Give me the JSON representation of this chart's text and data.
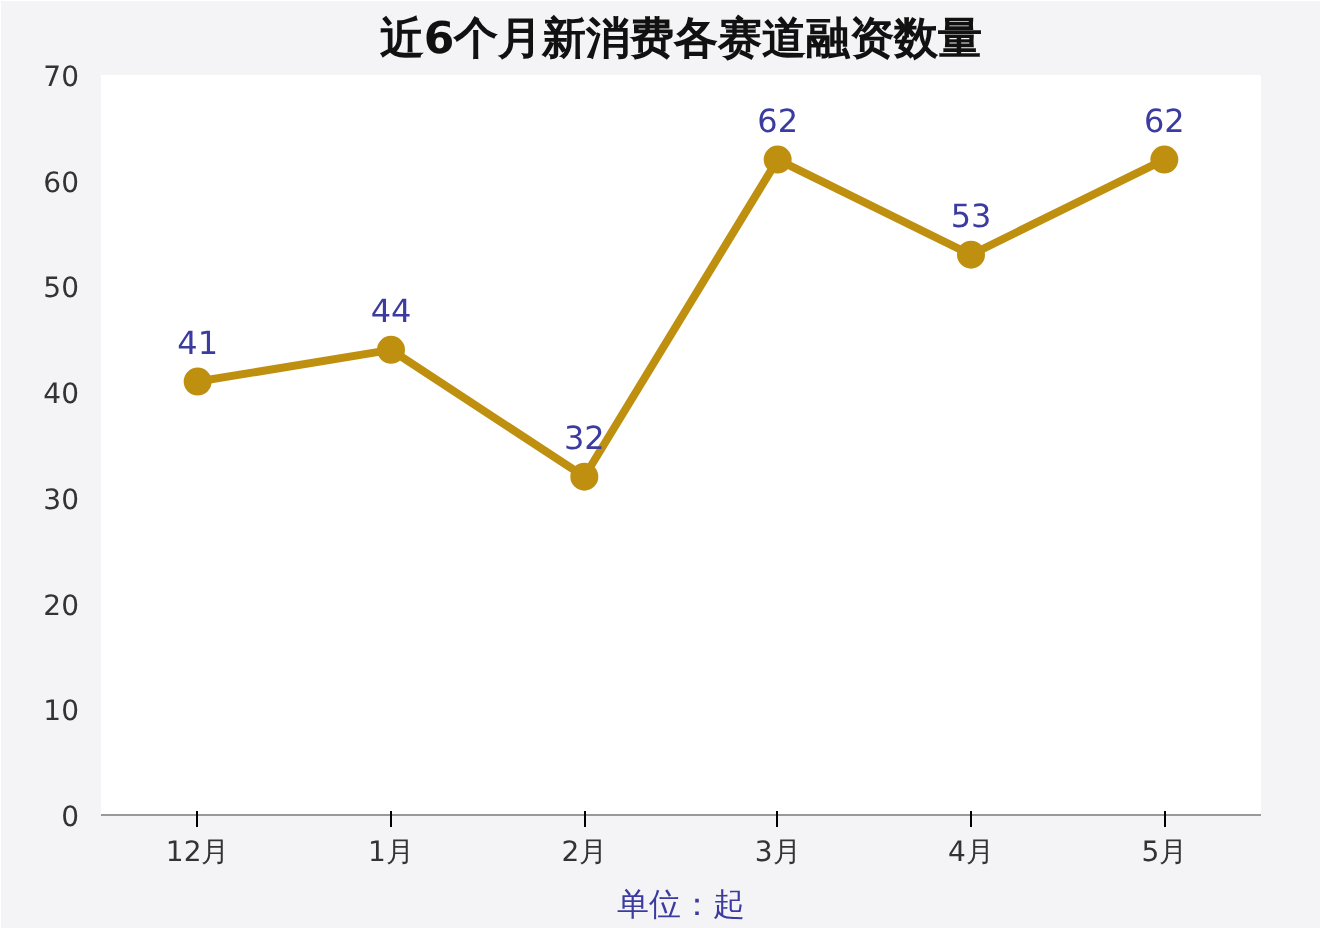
{
  "chart_data": {
    "type": "line",
    "title": "近6个月新消费各赛道融资数量",
    "xlabel": "单位：起",
    "categories": [
      "12月",
      "1月",
      "2月",
      "3月",
      "4月",
      "5月"
    ],
    "series": [
      {
        "color": "#bf9010",
        "values": [
          41,
          44,
          32,
          62,
          53,
          62
        ]
      }
    ],
    "ylim": [
      0,
      70
    ],
    "yticks": [
      0,
      10,
      20,
      30,
      40,
      50,
      60,
      70
    ],
    "grid": false,
    "marker": "circle",
    "line_style": "solid",
    "data_labels": true
  }
}
